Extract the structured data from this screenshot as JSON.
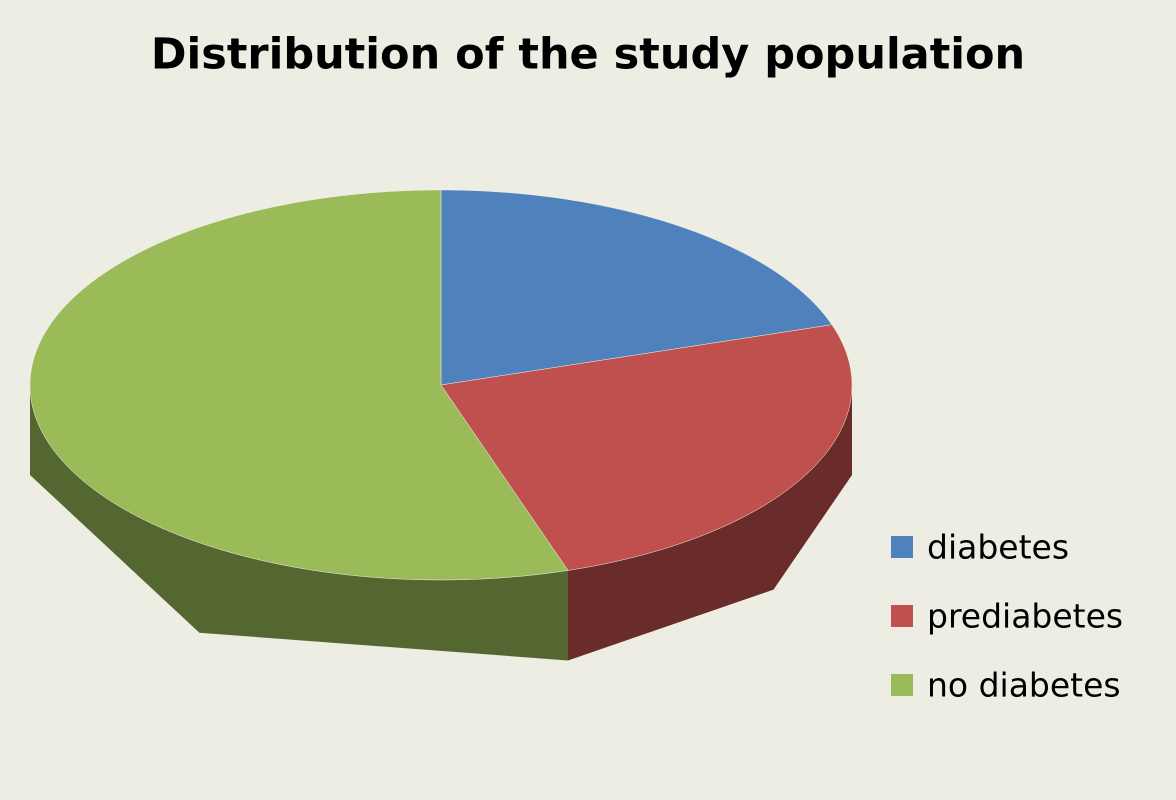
{
  "chart_data": {
    "type": "pie",
    "title": "Distribution of the study population",
    "categories": [
      "diabetes",
      "prediabetes",
      "no diabetes"
    ],
    "values": [
      20,
      25,
      55
    ],
    "colors": [
      "#4f81bd",
      "#c0504d",
      "#9bbb59"
    ],
    "legend": "right"
  }
}
